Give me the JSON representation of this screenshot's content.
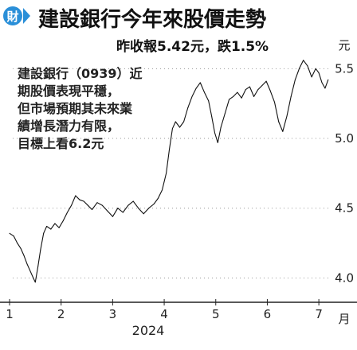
{
  "header": {
    "logo_text": "財",
    "title": "建設銀行今年來股價走勢"
  },
  "summary": "昨收報5.42元，跌1.5%",
  "annotation_lines": [
    "建設銀行（0939）近",
    "期股價表現平穩，",
    "但市場預期其未來業",
    "績增長潛力有限，",
    "目標上看6.2元"
  ],
  "chart_data": {
    "type": "line",
    "title": "建設銀行今年來股價走勢",
    "subtitle": "昨收報5.42元，跌1.5%",
    "xlabel": "2024",
    "x_unit_label": "月",
    "ylabel": "元",
    "year_label": "2024",
    "month_label": "月",
    "y_unit_label": "元",
    "x_ticks": [
      "1",
      "2",
      "3",
      "4",
      "5",
      "6",
      "7"
    ],
    "y_ticks": [
      "4.0",
      "4.5",
      "5.0",
      "5.5"
    ],
    "ylim": [
      3.9,
      5.65
    ],
    "xlim": [
      1,
      7.4
    ],
    "grid": true,
    "series": [
      {
        "values": [
          [
            1.0,
            4.32
          ],
          [
            1.08,
            4.3
          ],
          [
            1.15,
            4.25
          ],
          [
            1.22,
            4.21
          ],
          [
            1.28,
            4.16
          ],
          [
            1.34,
            4.1
          ],
          [
            1.4,
            4.05
          ],
          [
            1.46,
            4.0
          ],
          [
            1.5,
            3.97
          ],
          [
            1.55,
            4.08
          ],
          [
            1.6,
            4.2
          ],
          [
            1.66,
            4.32
          ],
          [
            1.72,
            4.37
          ],
          [
            1.8,
            4.35
          ],
          [
            1.88,
            4.39
          ],
          [
            1.96,
            4.36
          ],
          [
            2.04,
            4.41
          ],
          [
            2.12,
            4.47
          ],
          [
            2.2,
            4.52
          ],
          [
            2.28,
            4.59
          ],
          [
            2.36,
            4.56
          ],
          [
            2.44,
            4.55
          ],
          [
            2.52,
            4.52
          ],
          [
            2.6,
            4.49
          ],
          [
            2.7,
            4.54
          ],
          [
            2.8,
            4.52
          ],
          [
            2.9,
            4.48
          ],
          [
            3.0,
            4.44
          ],
          [
            3.1,
            4.5
          ],
          [
            3.2,
            4.47
          ],
          [
            3.3,
            4.52
          ],
          [
            3.4,
            4.55
          ],
          [
            3.5,
            4.5
          ],
          [
            3.6,
            4.46
          ],
          [
            3.7,
            4.5
          ],
          [
            3.8,
            4.53
          ],
          [
            3.88,
            4.57
          ],
          [
            3.96,
            4.63
          ],
          [
            4.04,
            4.75
          ],
          [
            4.1,
            4.92
          ],
          [
            4.16,
            5.07
          ],
          [
            4.22,
            5.12
          ],
          [
            4.3,
            5.08
          ],
          [
            4.38,
            5.12
          ],
          [
            4.46,
            5.22
          ],
          [
            4.54,
            5.3
          ],
          [
            4.62,
            5.36
          ],
          [
            4.7,
            5.4
          ],
          [
            4.78,
            5.33
          ],
          [
            4.86,
            5.27
          ],
          [
            4.92,
            5.16
          ],
          [
            4.98,
            5.04
          ],
          [
            5.04,
            4.97
          ],
          [
            5.1,
            5.08
          ],
          [
            5.18,
            5.18
          ],
          [
            5.26,
            5.28
          ],
          [
            5.34,
            5.3
          ],
          [
            5.42,
            5.33
          ],
          [
            5.5,
            5.29
          ],
          [
            5.58,
            5.35
          ],
          [
            5.66,
            5.37
          ],
          [
            5.74,
            5.3
          ],
          [
            5.82,
            5.35
          ],
          [
            5.9,
            5.38
          ],
          [
            5.98,
            5.41
          ],
          [
            6.06,
            5.34
          ],
          [
            6.14,
            5.26
          ],
          [
            6.22,
            5.12
          ],
          [
            6.3,
            5.05
          ],
          [
            6.38,
            5.16
          ],
          [
            6.46,
            5.3
          ],
          [
            6.54,
            5.42
          ],
          [
            6.62,
            5.5
          ],
          [
            6.7,
            5.56
          ],
          [
            6.78,
            5.52
          ],
          [
            6.86,
            5.44
          ],
          [
            6.94,
            5.5
          ],
          [
            7.0,
            5.47
          ],
          [
            7.06,
            5.4
          ],
          [
            7.12,
            5.36
          ],
          [
            7.18,
            5.42
          ]
        ]
      }
    ]
  }
}
